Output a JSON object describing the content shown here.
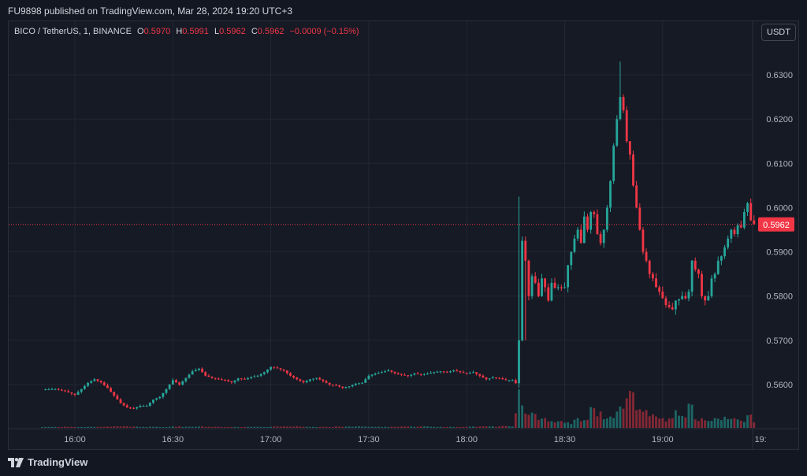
{
  "publish_text": "FU9898 published on TradingView.com, Mar 28, 2024 19:20 UTC+3",
  "legend": {
    "symbol": "BICO / TetherUS, 1, BINANCE",
    "o_label": "O",
    "o": "0.5970",
    "h_label": "H",
    "h": "0.5991",
    "l_label": "L",
    "l": "0.5962",
    "c_label": "C",
    "c": "0.5962",
    "change": "−0.0009 (−0.15%)"
  },
  "currency_button": "USDT",
  "footer_logo_text": "TradingView",
  "colors": {
    "up": "#26a69a",
    "down": "#f23645",
    "background": "#161a25",
    "grid": "#232733",
    "axis_text": "#b2b5be",
    "price_tag": "#f23645"
  },
  "chart_data": {
    "type": "candlestick",
    "title": "BICO / TetherUS, 1, BINANCE",
    "ylim": [
      0.55,
      0.634
    ],
    "y_ticks": [
      "0.6300",
      "0.6200",
      "0.6100",
      "0.6000",
      "0.5900",
      "0.5800",
      "0.5700",
      "0.5600"
    ],
    "x_ticks": [
      "16:00",
      "16:30",
      "17:00",
      "17:30",
      "18:00",
      "18:30",
      "19:00",
      "19:"
    ],
    "x_tick_minutes": [
      0,
      30,
      60,
      90,
      120,
      150,
      180,
      210
    ],
    "x_start_minute": -10,
    "last_price": "0.5962",
    "price_series": [
      [
        -10,
        0.5589
      ],
      [
        -6,
        0.559
      ],
      [
        -3,
        0.5585
      ],
      [
        0,
        0.5577
      ],
      [
        2,
        0.559
      ],
      [
        4,
        0.5604
      ],
      [
        6,
        0.5612
      ],
      [
        8,
        0.5605
      ],
      [
        10,
        0.5592
      ],
      [
        12,
        0.5575
      ],
      [
        14,
        0.5558
      ],
      [
        16,
        0.5548
      ],
      [
        18,
        0.5546
      ],
      [
        20,
        0.5552
      ],
      [
        22,
        0.5552
      ],
      [
        24,
        0.5566
      ],
      [
        26,
        0.5572
      ],
      [
        28,
        0.559
      ],
      [
        30,
        0.561
      ],
      [
        32,
        0.56
      ],
      [
        34,
        0.5615
      ],
      [
        36,
        0.563
      ],
      [
        38,
        0.5636
      ],
      [
        40,
        0.562
      ],
      [
        42,
        0.5615
      ],
      [
        44,
        0.5612
      ],
      [
        46,
        0.561
      ],
      [
        48,
        0.5605
      ],
      [
        50,
        0.5614
      ],
      [
        52,
        0.5612
      ],
      [
        54,
        0.5617
      ],
      [
        56,
        0.562
      ],
      [
        58,
        0.5628
      ],
      [
        60,
        0.564
      ],
      [
        62,
        0.5637
      ],
      [
        64,
        0.5632
      ],
      [
        66,
        0.562
      ],
      [
        68,
        0.5612
      ],
      [
        70,
        0.5605
      ],
      [
        72,
        0.5612
      ],
      [
        74,
        0.5615
      ],
      [
        76,
        0.5608
      ],
      [
        78,
        0.56
      ],
      [
        80,
        0.5598
      ],
      [
        82,
        0.5593
      ],
      [
        84,
        0.5596
      ],
      [
        86,
        0.5602
      ],
      [
        88,
        0.5604
      ],
      [
        90,
        0.562
      ],
      [
        92,
        0.5625
      ],
      [
        94,
        0.5628
      ],
      [
        96,
        0.5632
      ],
      [
        98,
        0.5626
      ],
      [
        100,
        0.5622
      ],
      [
        102,
        0.562
      ],
      [
        104,
        0.5625
      ],
      [
        106,
        0.5622
      ],
      [
        108,
        0.5625
      ],
      [
        110,
        0.5628
      ],
      [
        112,
        0.563
      ],
      [
        114,
        0.5628
      ],
      [
        116,
        0.5632
      ],
      [
        118,
        0.5628
      ],
      [
        120,
        0.5625
      ],
      [
        122,
        0.5628
      ],
      [
        124,
        0.562
      ],
      [
        126,
        0.5612
      ],
      [
        128,
        0.5616
      ],
      [
        130,
        0.5614
      ],
      [
        132,
        0.561
      ],
      [
        134,
        0.561
      ],
      [
        135,
        0.5603
      ],
      [
        136,
        0.57
      ],
      [
        137,
        0.5925
      ],
      [
        138,
        0.588
      ],
      [
        139,
        0.58
      ],
      [
        140,
        0.5845
      ],
      [
        141,
        0.583
      ],
      [
        142,
        0.58
      ],
      [
        143,
        0.584
      ],
      [
        144,
        0.582
      ],
      [
        145,
        0.579
      ],
      [
        146,
        0.583
      ],
      [
        147,
        0.5818
      ],
      [
        148,
        0.582
      ],
      [
        149,
        0.5818
      ],
      [
        150,
        0.582
      ],
      [
        151,
        0.587
      ],
      [
        152,
        0.59
      ],
      [
        153,
        0.593
      ],
      [
        154,
        0.595
      ],
      [
        155,
        0.592
      ],
      [
        156,
        0.598
      ],
      [
        157,
        0.595
      ],
      [
        158,
        0.599
      ],
      [
        159,
        0.5985
      ],
      [
        160,
        0.594
      ],
      [
        161,
        0.592
      ],
      [
        162,
        0.595
      ],
      [
        163,
        0.6
      ],
      [
        164,
        0.606
      ],
      [
        165,
        0.614
      ],
      [
        166,
        0.62
      ],
      [
        167,
        0.625
      ],
      [
        168,
        0.622
      ],
      [
        169,
        0.615
      ],
      [
        170,
        0.612
      ],
      [
        171,
        0.605
      ],
      [
        172,
        0.6
      ],
      [
        173,
        0.595
      ],
      [
        174,
        0.59
      ],
      [
        175,
        0.588
      ],
      [
        176,
        0.585
      ],
      [
        177,
        0.584
      ],
      [
        178,
        0.582
      ],
      [
        179,
        0.581
      ],
      [
        180,
        0.5795
      ],
      [
        181,
        0.578
      ],
      [
        182,
        0.5775
      ],
      [
        183,
        0.577
      ],
      [
        184,
        0.579
      ],
      [
        185,
        0.5793
      ],
      [
        186,
        0.58
      ],
      [
        187,
        0.5795
      ],
      [
        188,
        0.581
      ],
      [
        189,
        0.588
      ],
      [
        190,
        0.586
      ],
      [
        191,
        0.585
      ],
      [
        192,
        0.58
      ],
      [
        193,
        0.579
      ],
      [
        194,
        0.58
      ],
      [
        195,
        0.584
      ],
      [
        196,
        0.585
      ],
      [
        197,
        0.588
      ],
      [
        198,
        0.589
      ],
      [
        199,
        0.591
      ],
      [
        200,
        0.593
      ],
      [
        201,
        0.595
      ],
      [
        202,
        0.594
      ],
      [
        203,
        0.596
      ],
      [
        204,
        0.5955
      ],
      [
        205,
        0.599
      ],
      [
        206,
        0.601
      ],
      [
        207,
        0.5971
      ],
      [
        208,
        0.5962
      ]
    ],
    "volume_series": [
      [
        -10,
        0.03
      ],
      [
        0,
        0.03
      ],
      [
        10,
        0.04
      ],
      [
        20,
        0.03
      ],
      [
        30,
        0.04
      ],
      [
        40,
        0.03
      ],
      [
        50,
        0.03
      ],
      [
        60,
        0.04
      ],
      [
        70,
        0.03
      ],
      [
        80,
        0.04
      ],
      [
        90,
        0.03
      ],
      [
        100,
        0.04
      ],
      [
        110,
        0.03
      ],
      [
        120,
        0.04
      ],
      [
        130,
        0.05
      ],
      [
        135,
        0.5
      ],
      [
        136,
        1.0
      ],
      [
        137,
        0.7
      ],
      [
        138,
        0.55
      ],
      [
        139,
        0.45
      ],
      [
        140,
        0.4
      ],
      [
        142,
        0.3
      ],
      [
        145,
        0.2
      ],
      [
        148,
        0.18
      ],
      [
        150,
        0.15
      ],
      [
        153,
        0.3
      ],
      [
        155,
        0.25
      ],
      [
        158,
        0.7
      ],
      [
        160,
        0.4
      ],
      [
        162,
        0.35
      ],
      [
        164,
        0.3
      ],
      [
        166,
        0.65
      ],
      [
        168,
        0.75
      ],
      [
        170,
        0.95
      ],
      [
        172,
        0.6
      ],
      [
        174,
        0.45
      ],
      [
        176,
        0.35
      ],
      [
        178,
        0.3
      ],
      [
        180,
        0.25
      ],
      [
        182,
        0.3
      ],
      [
        184,
        0.45
      ],
      [
        186,
        0.35
      ],
      [
        188,
        0.8
      ],
      [
        190,
        0.25
      ],
      [
        192,
        0.3
      ],
      [
        194,
        0.2
      ],
      [
        196,
        0.25
      ],
      [
        198,
        0.3
      ],
      [
        200,
        0.25
      ],
      [
        202,
        0.3
      ],
      [
        204,
        0.2
      ],
      [
        206,
        0.35
      ],
      [
        208,
        0.2
      ]
    ]
  }
}
